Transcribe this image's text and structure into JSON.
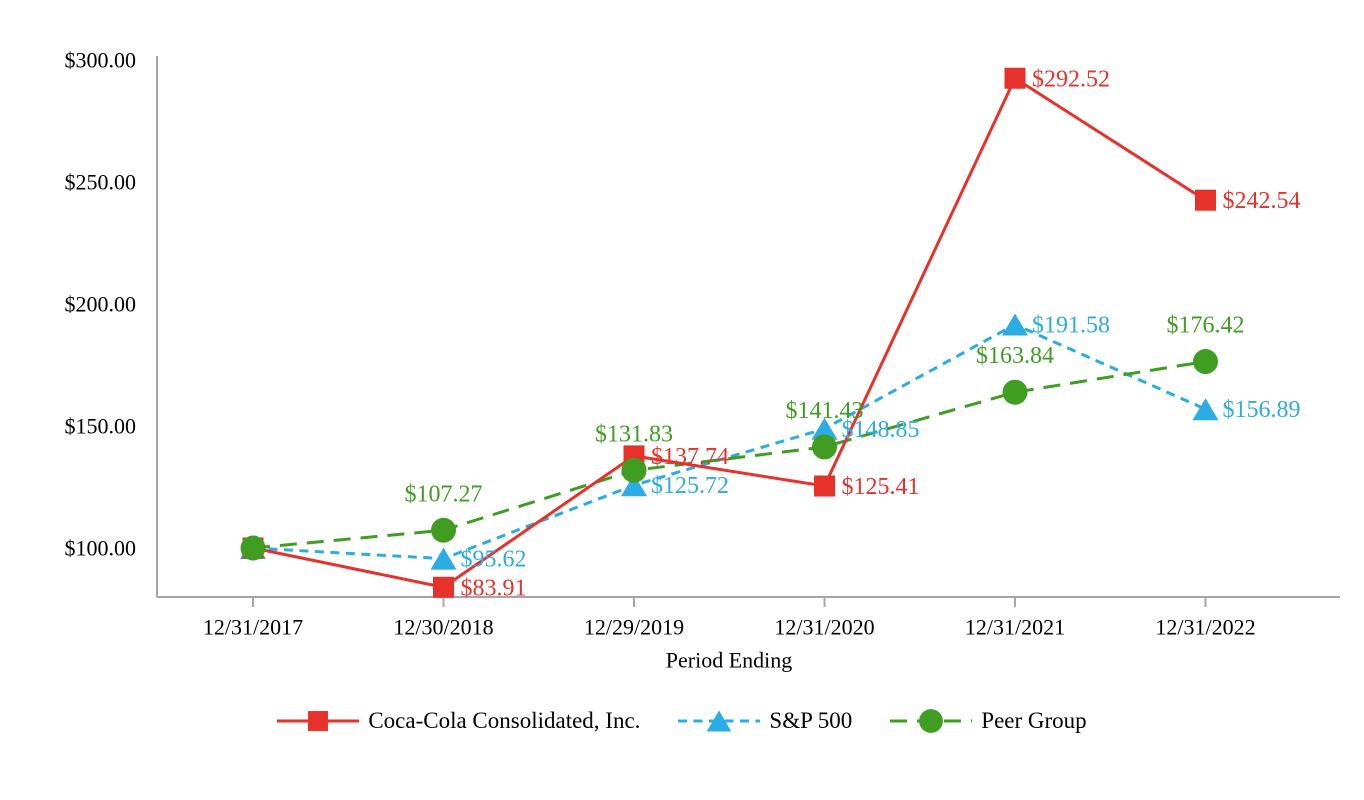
{
  "chart_data": {
    "type": "line",
    "title": "",
    "xlabel": "Period Ending",
    "ylabel": "",
    "grid": false,
    "legend_position": "bottom",
    "categories": [
      "12/31/2017",
      "12/30/2018",
      "12/29/2019",
      "12/31/2020",
      "12/31/2021",
      "12/31/2022"
    ],
    "y_ticks": [
      {
        "label": "$300.00",
        "value": 300
      },
      {
        "label": "$250.00",
        "value": 250
      },
      {
        "label": "$200.00",
        "value": 200
      },
      {
        "label": "$150.00",
        "value": 150
      },
      {
        "label": "$100.00",
        "value": 100
      }
    ],
    "ylim": [
      80,
      302
    ],
    "axis_color": "#A5A5A5",
    "series": [
      {
        "id": "ccci",
        "name": "Coca-Cola Consolidated, Inc.",
        "color": "#E7312B",
        "marker": "square",
        "line_style": "solid",
        "values": [
          100.0,
          83.91,
          137.74,
          125.41,
          292.52,
          242.54
        ],
        "labels": [
          "",
          "$83.91",
          "$137.74",
          "$125.41",
          "$292.52",
          "$242.54"
        ],
        "label_side": [
          "none",
          "right",
          "right",
          "right",
          "right",
          "right"
        ]
      },
      {
        "id": "sp500",
        "name": "S&P 500",
        "color": "#2CACE4",
        "marker": "triangle",
        "line_style": "dash-short",
        "values": [
          100.0,
          95.62,
          125.72,
          148.85,
          191.58,
          156.89
        ],
        "labels": [
          "",
          "$95.62",
          "$125.72",
          "$148.85",
          "$191.58",
          "$156.89"
        ],
        "label_side": [
          "none",
          "right",
          "right",
          "right",
          "right",
          "right"
        ]
      },
      {
        "id": "peer-group",
        "name": "Peer Group",
        "color": "#3F9E21",
        "marker": "circle",
        "line_style": "dash-long",
        "values": [
          100.0,
          107.27,
          131.83,
          141.43,
          163.84,
          176.42
        ],
        "labels": [
          "",
          "$107.27",
          "$131.83",
          "$141.43",
          "$163.84",
          "$176.42"
        ],
        "label_side": [
          "none",
          "above",
          "above",
          "above",
          "above",
          "above"
        ]
      }
    ]
  }
}
